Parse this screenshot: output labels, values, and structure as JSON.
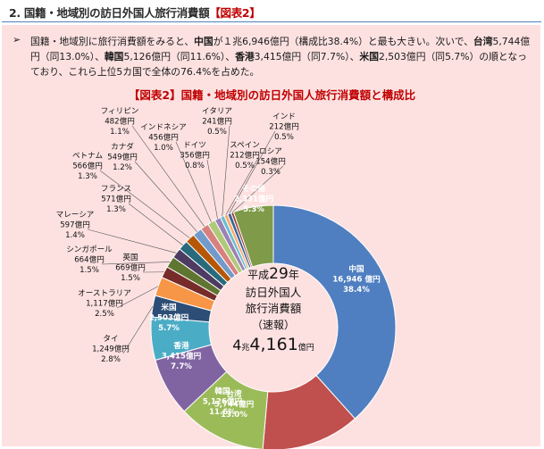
{
  "header": {
    "number": "2.",
    "title": "国籍・地域別の訪日外国人旅行消費額",
    "tag": "【図表2】"
  },
  "summary": {
    "bullet": "➢",
    "parts": [
      {
        "t": "国籍・地域別に旅行消費額をみると、",
        "b": false
      },
      {
        "t": "中国",
        "b": true
      },
      {
        "t": "が１兆6,946億円（構成比38.4%）と最も大きい。次いで、",
        "b": false
      },
      {
        "t": "台湾",
        "b": true
      },
      {
        "t": "5,744億円（同13.0%）、",
        "b": false
      },
      {
        "t": "韓国",
        "b": true
      },
      {
        "t": "5,126億円（同11.6%）、",
        "b": false
      },
      {
        "t": "香港",
        "b": true
      },
      {
        "t": "3,415億円（同7.7%）、",
        "b": false
      },
      {
        "t": "米国",
        "b": true
      },
      {
        "t": "2,503億円（同5.7%）の順となっており、これら上位5カ国で全体の76.4%を占めた。",
        "b": false
      }
    ]
  },
  "chart_title": "【図表2】国籍・地域別の訪日外国人旅行消費額と構成比",
  "center_label": {
    "line1a": "平成",
    "line1b": "29",
    "line1c": "年",
    "line2": "訪日外国人",
    "line3": "旅行消費額",
    "line4": "（速報）",
    "total_a": "4",
    "total_b": "兆",
    "total_c": "4,161",
    "total_d": "億円"
  },
  "chart_data": {
    "type": "pie",
    "title": "【図表2】国籍・地域別の訪日外国人旅行消費額と構成比",
    "total_label": "4兆4,161億円",
    "slices": [
      {
        "name": "中国",
        "value_label": "16,946 億円",
        "value": 16946,
        "pct": 38.4,
        "pct_label": "38.4%",
        "color": "#4f7fc0"
      },
      {
        "name": "台湾",
        "value_label": "5,744億円",
        "value": 5744,
        "pct": 13.0,
        "pct_label": "13.0%",
        "color": "#c0504d"
      },
      {
        "name": "韓国",
        "value_label": "5,126億円",
        "value": 5126,
        "pct": 11.6,
        "pct_label": "11.6%",
        "color": "#9bbb59"
      },
      {
        "name": "香港",
        "value_label": "3,415億円",
        "value": 3415,
        "pct": 7.7,
        "pct_label": "7.7%",
        "color": "#8064a2"
      },
      {
        "name": "米国",
        "value_label": "2,503億円",
        "value": 2503,
        "pct": 5.7,
        "pct_label": "5.7%",
        "color": "#4bacc6"
      },
      {
        "name": "タイ",
        "value_label": "1,249億円",
        "value": 1249,
        "pct": 2.8,
        "pct_label": "2.8%",
        "color": "#2c4d75"
      },
      {
        "name": "オーストラリア",
        "value_label": "1,117億円",
        "value": 1117,
        "pct": 2.5,
        "pct_label": "2.5%",
        "color": "#f79646"
      },
      {
        "name": "英国",
        "value_label": "669億円",
        "value": 669,
        "pct": 1.5,
        "pct_label": "1.5%",
        "color": "#772c2a"
      },
      {
        "name": "シンガポール",
        "value_label": "664億円",
        "value": 664,
        "pct": 1.5,
        "pct_label": "1.5%",
        "color": "#5f7530"
      },
      {
        "name": "マレーシア",
        "value_label": "597億円",
        "value": 597,
        "pct": 1.4,
        "pct_label": "1.4%",
        "color": "#4d3b62"
      },
      {
        "name": "フランス",
        "value_label": "571億円",
        "value": 571,
        "pct": 1.3,
        "pct_label": "1.3%",
        "color": "#276a7c"
      },
      {
        "name": "ベトナム",
        "value_label": "566億円",
        "value": 566,
        "pct": 1.3,
        "pct_label": "1.3%",
        "color": "#b65708"
      },
      {
        "name": "カナダ",
        "value_label": "549億円",
        "value": 549,
        "pct": 1.2,
        "pct_label": "1.2%",
        "color": "#729aca"
      },
      {
        "name": "フィリピン",
        "value_label": "482億円",
        "value": 482,
        "pct": 1.1,
        "pct_label": "1.1%",
        "color": "#d9807e"
      },
      {
        "name": "インドネシア",
        "value_label": "456億円",
        "value": 456,
        "pct": 1.0,
        "pct_label": "1.0%",
        "color": "#afc97a"
      },
      {
        "name": "ドイツ",
        "value_label": "356億円",
        "value": 356,
        "pct": 0.8,
        "pct_label": "0.8%",
        "color": "#9983b5"
      },
      {
        "name": "イタリア",
        "value_label": "241億円",
        "value": 241,
        "pct": 0.5,
        "pct_label": "0.5%",
        "color": "#6fbdd1"
      },
      {
        "name": "スペイン",
        "value_label": "212億円",
        "value": 212,
        "pct": 0.5,
        "pct_label": "0.5%",
        "color": "#f9ab6b"
      },
      {
        "name": "インド",
        "value_label": "212億円",
        "value": 212,
        "pct": 0.5,
        "pct_label": "0.5%",
        "color": "#3b6598"
      },
      {
        "name": "ロシア",
        "value_label": "154億円",
        "value": 154,
        "pct": 0.3,
        "pct_label": "0.3%",
        "color": "#9c3d3a"
      },
      {
        "name": "その他",
        "value_label": "2,331億円",
        "value": 2331,
        "pct": 5.3,
        "pct_label": "5.3%",
        "color": "#7f9a48"
      }
    ]
  }
}
